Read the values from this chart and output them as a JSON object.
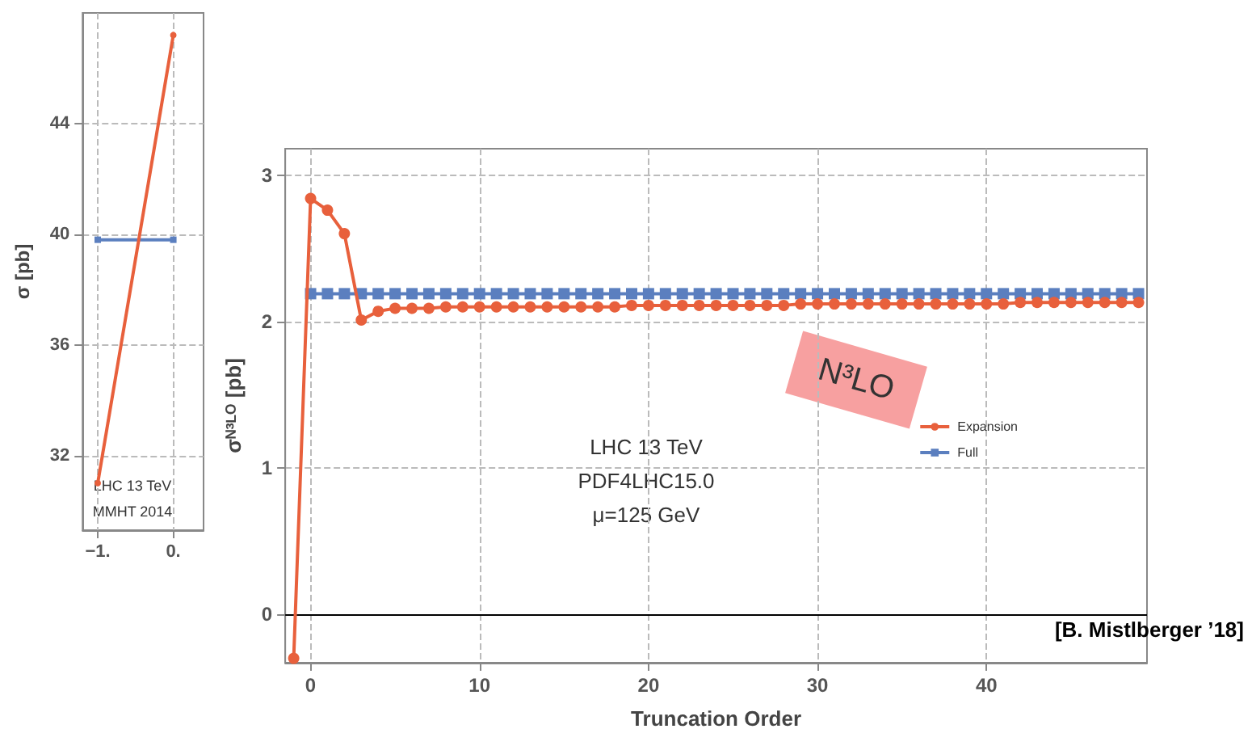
{
  "chart_data": [
    {
      "type": "line",
      "ylabel": "σ [pb]",
      "annotations": [
        "LHC 13 TeV",
        "MMHT 2014"
      ],
      "x": [
        -1,
        0
      ],
      "series": [
        {
          "color": "#e8603c",
          "values": [
            31.0,
            47.2
          ],
          "marker": "circle"
        },
        {
          "color": "#5b7fbf",
          "values": [
            39.8,
            39.8
          ],
          "marker": "square"
        }
      ],
      "xlim": [
        -1.2,
        0.4
      ],
      "xticks": [
        {
          "value": -1,
          "label": "−1."
        },
        {
          "value": 0,
          "label": "0."
        }
      ],
      "ylim": [
        29.3,
        48
      ],
      "yticks": [
        32,
        36,
        40,
        44
      ],
      "grid": true,
      "legend": false
    },
    {
      "type": "line",
      "xlabel": "Truncation Order",
      "ylabel": "σᴺ³ᴸᴼ [pb]",
      "annotations": [
        "LHC 13 TeV",
        "PDF4LHC15.0",
        "μ=125 GeV",
        "N³LO",
        "[B. Mistlberger ’18]"
      ],
      "series": [
        {
          "name": "Expansion",
          "color": "#e8603c",
          "marker": "circle",
          "x": [
            -1,
            0,
            1,
            2,
            3,
            4,
            5,
            6,
            7,
            8,
            9,
            10,
            11,
            12,
            13,
            14,
            15,
            16,
            17,
            18,
            19,
            20,
            21,
            22,
            23,
            24,
            25,
            26,
            27,
            28,
            29,
            30,
            31,
            32,
            33,
            34,
            35,
            36,
            37,
            38,
            39,
            40,
            41,
            42,
            43,
            44,
            45,
            46,
            47,
            48,
            49
          ],
          "values": [
            -0.3,
            2.84,
            2.76,
            2.6,
            2.01,
            2.07,
            2.09,
            2.09,
            2.09,
            2.1,
            2.1,
            2.1,
            2.1,
            2.1,
            2.1,
            2.1,
            2.1,
            2.1,
            2.1,
            2.1,
            2.11,
            2.11,
            2.11,
            2.11,
            2.11,
            2.11,
            2.11,
            2.11,
            2.11,
            2.11,
            2.12,
            2.12,
            2.12,
            2.12,
            2.12,
            2.12,
            2.12,
            2.12,
            2.12,
            2.12,
            2.12,
            2.12,
            2.12,
            2.13,
            2.13,
            2.13,
            2.13,
            2.13,
            2.13,
            2.13,
            2.13
          ]
        },
        {
          "name": "Full",
          "color": "#5b7fbf",
          "marker": "square",
          "x": [
            0,
            1,
            2,
            3,
            4,
            5,
            6,
            7,
            8,
            9,
            10,
            11,
            12,
            13,
            14,
            15,
            16,
            17,
            18,
            19,
            20,
            21,
            22,
            23,
            24,
            25,
            26,
            27,
            28,
            29,
            30,
            31,
            32,
            33,
            34,
            35,
            36,
            37,
            38,
            39,
            40,
            41,
            42,
            43,
            44,
            45,
            46,
            47,
            48,
            49
          ],
          "values": [
            2.19,
            2.19,
            2.19,
            2.19,
            2.19,
            2.19,
            2.19,
            2.19,
            2.19,
            2.19,
            2.19,
            2.19,
            2.19,
            2.19,
            2.19,
            2.19,
            2.19,
            2.19,
            2.19,
            2.19,
            2.19,
            2.19,
            2.19,
            2.19,
            2.19,
            2.19,
            2.19,
            2.19,
            2.19,
            2.19,
            2.19,
            2.19,
            2.19,
            2.19,
            2.19,
            2.19,
            2.19,
            2.19,
            2.19,
            2.19,
            2.19,
            2.19,
            2.19,
            2.19,
            2.19,
            2.19,
            2.19,
            2.19,
            2.19,
            2.19
          ]
        }
      ],
      "xlim": [
        -1.5,
        49.5
      ],
      "xticks": [
        0,
        10,
        20,
        30,
        40
      ],
      "ylim": [
        -0.33,
        3.18
      ],
      "yticks": [
        0,
        1,
        2,
        3
      ],
      "ref_lines": [
        {
          "axis": "y",
          "value": 0,
          "color": "#000000"
        }
      ],
      "grid": true,
      "legend": "right"
    }
  ]
}
